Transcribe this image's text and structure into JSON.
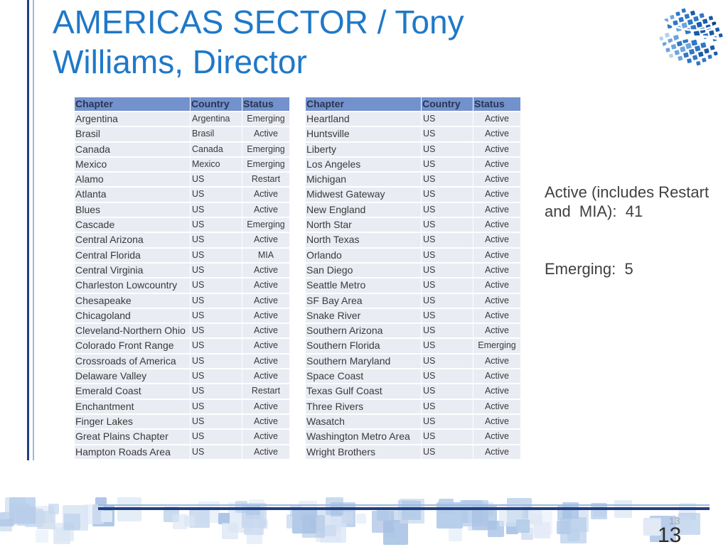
{
  "slide": {
    "title": "AMERICAS SECTOR / Tony Williams, Director",
    "slide_number": "13"
  },
  "tables": [
    {
      "headers": [
        "Chapter",
        "Country",
        "Status"
      ],
      "rows": [
        [
          "Argentina",
          "Argentina",
          "Emerging"
        ],
        [
          "Brasil",
          "Brasil",
          "Active"
        ],
        [
          "Canada",
          "Canada",
          "Emerging"
        ],
        [
          "Mexico",
          "Mexico",
          "Emerging"
        ],
        [
          "Alamo",
          "US",
          "Restart"
        ],
        [
          "Atlanta",
          "US",
          "Active"
        ],
        [
          "Blues",
          "US",
          "Active"
        ],
        [
          "Cascade",
          "US",
          "Emerging"
        ],
        [
          "Central Arizona",
          "US",
          "Active"
        ],
        [
          "Central Florida",
          "US",
          "MIA"
        ],
        [
          "Central Virginia",
          "US",
          "Active"
        ],
        [
          "Charleston Lowcountry",
          "US",
          "Active"
        ],
        [
          "Chesapeake",
          "US",
          "Active"
        ],
        [
          "Chicagoland",
          "US",
          "Active"
        ],
        [
          "Cleveland-Northern Ohio",
          "US",
          "Active"
        ],
        [
          "Colorado Front Range",
          "US",
          "Active"
        ],
        [
          "Crossroads of America",
          "US",
          "Active"
        ],
        [
          "Delaware Valley",
          "US",
          "Active"
        ],
        [
          "Emerald Coast",
          "US",
          "Restart"
        ],
        [
          "Enchantment",
          "US",
          "Active"
        ],
        [
          "Finger Lakes",
          "US",
          "Active"
        ],
        [
          "Great Plains Chapter",
          "US",
          "Active"
        ],
        [
          "Hampton Roads Area",
          "US",
          "Active"
        ]
      ]
    },
    {
      "headers": [
        "Chapter",
        "Country",
        "Status"
      ],
      "rows": [
        [
          "Heartland",
          "US",
          "Active"
        ],
        [
          "Huntsville",
          "US",
          "Active"
        ],
        [
          "Liberty",
          "US",
          "Active"
        ],
        [
          "Los Angeles",
          "US",
          "Active"
        ],
        [
          "Michigan",
          "US",
          "Active"
        ],
        [
          "Midwest Gateway",
          "US",
          "Active"
        ],
        [
          "New England",
          "US",
          "Active"
        ],
        [
          "North Star",
          "US",
          "Active"
        ],
        [
          "North Texas",
          "US",
          "Active"
        ],
        [
          "Orlando",
          "US",
          "Active"
        ],
        [
          "San Diego",
          "US",
          "Active"
        ],
        [
          "Seattle Metro",
          "US",
          "Active"
        ],
        [
          "SF Bay Area",
          "US",
          "Active"
        ],
        [
          "Snake River",
          "US",
          "Active"
        ],
        [
          "Southern Arizona",
          "US",
          "Active"
        ],
        [
          "Southern Florida",
          "US",
          "Emerging"
        ],
        [
          "Southern Maryland",
          "US",
          "Active"
        ],
        [
          "Space Coast",
          "US",
          "Active"
        ],
        [
          "Texas Gulf Coast",
          "US",
          "Active"
        ],
        [
          "Three Rivers",
          "US",
          "Active"
        ],
        [
          "Wasatch",
          "US",
          "Active"
        ],
        [
          "Washington Metro Area",
          "US",
          "Active"
        ],
        [
          "Wright Brothers",
          "US",
          "Active"
        ]
      ]
    }
  ],
  "summary": {
    "active_line": "Active (includes Restart and  MIA):  41",
    "emerging_line": "Emerging:  5"
  },
  "colors": {
    "title": "#1f78c8",
    "header": "#7391cd",
    "cell": "#e9ecf3",
    "navy": "#22407f",
    "light": "#9db8df"
  }
}
